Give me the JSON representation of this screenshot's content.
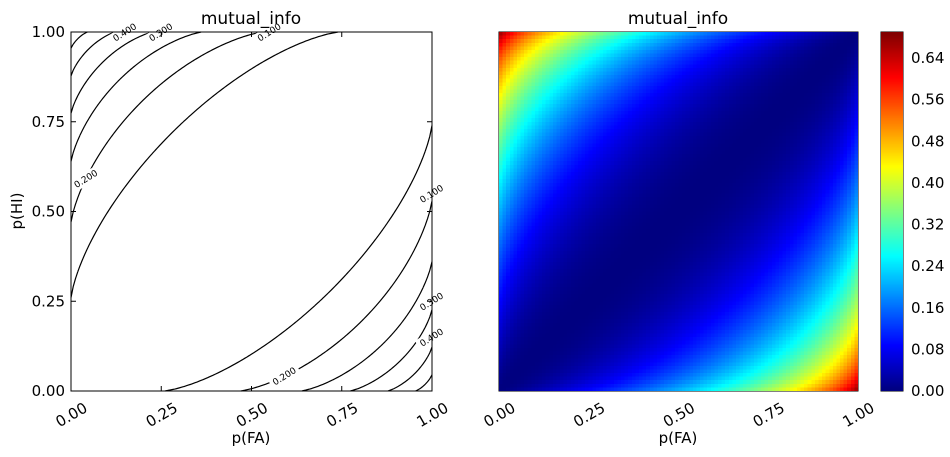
{
  "figure": {
    "background": "#ffffff"
  },
  "chart_data": [
    {
      "type": "contour",
      "title": "mutual_info",
      "xlabel": "p(FA)",
      "ylabel": "p(HI)",
      "xlim": [
        0,
        1
      ],
      "ylim": [
        0,
        1
      ],
      "xticks": [
        "0.00",
        "0.25",
        "0.50",
        "0.75",
        "1.00"
      ],
      "yticks": [
        "0.00",
        "0.25",
        "0.50",
        "0.75",
        "1.00"
      ],
      "levels": [
        0.1,
        0.2,
        0.3,
        0.4,
        0.5,
        0.6
      ],
      "contour_labels": [
        "0.400",
        "0.300",
        "0.200",
        "0.100",
        "0.100",
        "0.200",
        "0.300",
        "0.400"
      ],
      "line_color": "#000000",
      "function": "mutual information between binary stimulus (p=0.5) and response with hit rate p(HI) and false-alarm rate p(FA)"
    },
    {
      "type": "heatmap",
      "title": "mutual_info",
      "xlabel": "p(FA)",
      "ylabel": "",
      "xlim": [
        0,
        1
      ],
      "ylim": [
        0,
        1
      ],
      "xticks": [
        "0.00",
        "0.25",
        "0.50",
        "0.75",
        "1.00"
      ],
      "colormap": "jet",
      "grid_resolution": 100,
      "value_range": [
        0,
        0.69
      ],
      "colorbar": {
        "ticks": [
          "0.00",
          "0.08",
          "0.16",
          "0.24",
          "0.32",
          "0.40",
          "0.48",
          "0.56",
          "0.64"
        ],
        "tick_values": [
          0,
          0.08,
          0.16,
          0.24,
          0.32,
          0.4,
          0.48,
          0.56,
          0.64
        ]
      }
    }
  ]
}
